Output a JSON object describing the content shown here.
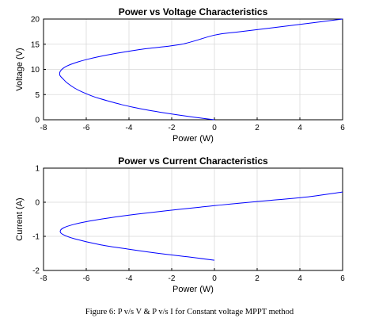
{
  "chart_data": [
    {
      "type": "line",
      "title": "Power vs Voltage Characteristics",
      "xlabel": "Power (W)",
      "ylabel": "Voltage (V)",
      "xlim": [
        -8,
        6
      ],
      "ylim": [
        0,
        20
      ],
      "xticks": [
        -8,
        -6,
        -4,
        -2,
        0,
        2,
        4,
        6
      ],
      "yticks": [
        0,
        5,
        10,
        15,
        20
      ],
      "grid": true,
      "color": "#0000ff",
      "series": [
        {
          "x": [
            0,
            -0.93,
            -1.78,
            -2.54,
            -3.23,
            -3.82,
            -4.34,
            -4.78,
            -5.59,
            -6.18,
            -6.55,
            -6.89,
            -7.06,
            -7.23,
            -7.23,
            -7.14,
            -6.98,
            -6.72,
            -6.38,
            -5.95,
            -5.44,
            -4.85,
            -3.4,
            -1.53,
            0,
            1.23,
            3.74,
            6.0
          ],
          "y": [
            0,
            0.5,
            1.0,
            1.5,
            2.0,
            2.5,
            3.0,
            3.5,
            4.5,
            5.5,
            6.3,
            7.3,
            8.0,
            8.8,
            9.5,
            10.0,
            10.5,
            11.0,
            11.5,
            12.0,
            12.5,
            13.0,
            14.0,
            15.0,
            16.8,
            17.5,
            18.8,
            20.0
          ]
        }
      ]
    },
    {
      "type": "line",
      "title": "Power vs Current Characteristics",
      "xlabel": "Power (W)",
      "ylabel": "Current (A)",
      "xlim": [
        -8,
        6
      ],
      "ylim": [
        -2,
        1
      ],
      "xticks": [
        -8,
        -6,
        -4,
        -2,
        0,
        2,
        4,
        6
      ],
      "yticks": [
        -2,
        -1,
        0,
        1
      ],
      "grid": true,
      "color": "#0000ff",
      "series": [
        {
          "x": [
            0,
            -1.26,
            -2.6,
            -3.97,
            -5.32,
            -6.56,
            -7.08,
            -7.22,
            -7.06,
            -6.58,
            -5.83,
            -4.83,
            -3.63,
            -2.26,
            -0.77,
            0,
            0.81,
            2.51,
            4.26,
            6.0
          ],
          "y": [
            -1.7,
            -1.6,
            -1.5,
            -1.38,
            -1.25,
            -1.07,
            -0.95,
            -0.85,
            -0.75,
            -0.65,
            -0.55,
            -0.45,
            -0.35,
            -0.25,
            -0.15,
            -0.1,
            -0.05,
            0.05,
            0.15,
            0.3
          ]
        }
      ]
    }
  ],
  "caption": "Figure 6: P v/s V & P v/s I for Constant voltage MPPT method"
}
